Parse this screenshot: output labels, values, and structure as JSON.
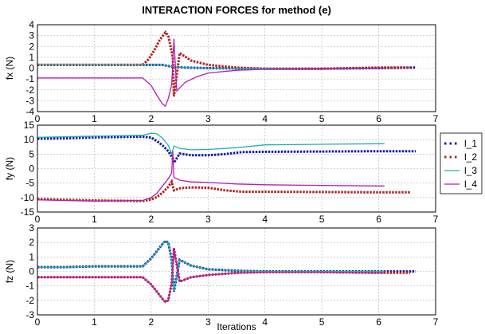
{
  "title": "INTERACTION FORCES for method (e)",
  "xlabel": "Iterations",
  "legend": {
    "placement": "right-of-middle-panel",
    "entries": [
      {
        "name": "l_1",
        "color": "#1a1aa6",
        "style": "dotted"
      },
      {
        "name": "l_2",
        "color": "#b22222",
        "style": "dotted"
      },
      {
        "name": "l_3",
        "color": "#20b2aa",
        "style": "solid"
      },
      {
        "name": "l_4",
        "color": "#b31fb3",
        "style": "solid"
      }
    ]
  },
  "chart_data": [
    {
      "type": "line",
      "ylabel": "fx (N)",
      "xlim": [
        0,
        7
      ],
      "ylim": [
        -4,
        4
      ],
      "xticks": [
        "0",
        "1",
        "2",
        "3",
        "4",
        "5",
        "6",
        "7"
      ],
      "yticks": [
        "4",
        "3",
        "2",
        "1",
        "0",
        "-1",
        "-2",
        "-3",
        "-4"
      ],
      "grid": true,
      "series": [
        {
          "name": "l_1",
          "color": "#1a1aa6",
          "style": "dotted",
          "x": [
            0,
            1.85,
            2.2,
            2.4,
            2.6,
            3.0,
            4.0,
            5.0,
            6.0,
            6.65
          ],
          "y": [
            0.3,
            0.3,
            0.3,
            0.1,
            0.05,
            0.0,
            -0.05,
            -0.05,
            0.0,
            0.05
          ]
        },
        {
          "name": "l_2",
          "color": "#b22222",
          "style": "dotted",
          "x": [
            0,
            1.85,
            1.95,
            2.05,
            2.15,
            2.25,
            2.3,
            2.38,
            2.4,
            2.5,
            2.7,
            3.0,
            3.5,
            4.0,
            5.0,
            6.0,
            6.55
          ],
          "y": [
            0.3,
            0.3,
            0.8,
            1.6,
            2.6,
            3.3,
            3.0,
            1.0,
            -2.6,
            1.4,
            0.7,
            0.3,
            0.05,
            -0.05,
            -0.05,
            0.05,
            0.05
          ]
        },
        {
          "name": "l_3",
          "color": "#20b2aa",
          "style": "solid",
          "x": [
            0,
            1.85,
            2.2,
            2.4,
            3.0,
            4.0,
            5.0,
            6.1
          ],
          "y": [
            0.3,
            0.3,
            0.3,
            0.1,
            0.0,
            -0.05,
            -0.05,
            0.0
          ]
        },
        {
          "name": "l_4",
          "color": "#b31fb3",
          "style": "solid",
          "x": [
            0,
            1.85,
            2.0,
            2.1,
            2.2,
            2.25,
            2.3,
            2.36,
            2.4,
            2.45,
            2.6,
            2.8,
            3.0,
            3.5,
            4.0,
            5.0,
            6.1
          ],
          "y": [
            -0.9,
            -0.9,
            -1.6,
            -2.5,
            -3.3,
            -3.5,
            -2.8,
            -1.5,
            2.7,
            -2.1,
            -1.3,
            -0.8,
            -0.45,
            -0.2,
            -0.1,
            -0.05,
            0.0
          ]
        }
      ]
    },
    {
      "type": "line",
      "ylabel": "fy (N)",
      "xlim": [
        0,
        7
      ],
      "ylim": [
        -15,
        15
      ],
      "xticks": [
        "0",
        "1",
        "2",
        "3",
        "4",
        "5",
        "6",
        "7"
      ],
      "yticks": [
        "15",
        "10",
        "5",
        "0",
        "-5",
        "-10",
        "-15"
      ],
      "grid": true,
      "series": [
        {
          "name": "l_1",
          "color": "#1a1aa6",
          "style": "dotted",
          "x": [
            0,
            0.5,
            1.0,
            1.85,
            2.0,
            2.1,
            2.2,
            2.3,
            2.38,
            2.4,
            2.5,
            2.7,
            3.0,
            3.3,
            3.6,
            4.0,
            5.0,
            6.0,
            6.65
          ],
          "y": [
            10.3,
            10.5,
            10.8,
            11.0,
            10.7,
            9.5,
            8.0,
            6.0,
            3.5,
            2.0,
            5.2,
            4.6,
            4.6,
            5.0,
            5.7,
            5.8,
            5.9,
            6.0,
            6.0
          ]
        },
        {
          "name": "l_2",
          "color": "#b22222",
          "style": "dotted",
          "x": [
            0,
            0.5,
            1.0,
            1.85,
            2.0,
            2.1,
            2.2,
            2.3,
            2.36,
            2.4,
            2.5,
            2.7,
            3.0,
            3.3,
            3.6,
            4.0,
            5.0,
            6.0,
            6.55
          ],
          "y": [
            -10.5,
            -10.8,
            -11.0,
            -11.2,
            -10.7,
            -9.8,
            -8.3,
            -6.3,
            -4.5,
            -7.5,
            -6.8,
            -6.5,
            -6.6,
            -7.5,
            -8.0,
            -8.0,
            -8.1,
            -8.2,
            -8.2
          ]
        },
        {
          "name": "l_3",
          "color": "#20b2aa",
          "style": "solid",
          "x": [
            0,
            0.5,
            1.0,
            1.85,
            2.0,
            2.1,
            2.2,
            2.3,
            2.36,
            2.4,
            2.5,
            2.7,
            3.0,
            3.5,
            4.0,
            5.0,
            6.0,
            6.1
          ],
          "y": [
            10.8,
            11.0,
            11.2,
            11.5,
            12.2,
            12.0,
            10.5,
            8.0,
            5.0,
            7.8,
            7.0,
            6.5,
            6.6,
            7.2,
            8.2,
            8.4,
            8.6,
            8.6
          ]
        },
        {
          "name": "l_4",
          "color": "#b31fb3",
          "style": "solid",
          "x": [
            0,
            0.5,
            1.0,
            1.85,
            2.0,
            2.1,
            2.2,
            2.3,
            2.36,
            2.38,
            2.4,
            2.5,
            2.7,
            3.0,
            3.5,
            4.0,
            5.0,
            6.0,
            6.1
          ],
          "y": [
            -10.8,
            -11.0,
            -11.2,
            -11.0,
            -10.0,
            -8.5,
            -6.0,
            -3.5,
            -1.5,
            6.0,
            -3.0,
            -4.0,
            -4.6,
            -4.8,
            -5.3,
            -5.6,
            -5.8,
            -6.0,
            -6.0
          ]
        }
      ]
    },
    {
      "type": "line",
      "ylabel": "fz (N)",
      "xlim": [
        0,
        7
      ],
      "ylim": [
        -3,
        3
      ],
      "xticks": [
        "0",
        "1",
        "2",
        "3",
        "4",
        "5",
        "6",
        "7"
      ],
      "yticks": [
        "3",
        "2",
        "1",
        "0",
        "-1",
        "-2",
        "-3"
      ],
      "grid": true,
      "series": [
        {
          "name": "l_1",
          "color": "#1a1aa6",
          "style": "dotted",
          "x": [
            0,
            0.5,
            1.0,
            1.85,
            2.0,
            2.1,
            2.2,
            2.25,
            2.3,
            2.36,
            2.4,
            2.5,
            2.7,
            3.0,
            3.5,
            4.0,
            5.0,
            6.0,
            6.65
          ],
          "y": [
            0.3,
            0.3,
            0.35,
            0.35,
            0.9,
            1.4,
            1.9,
            2.1,
            2.0,
            0.8,
            -1.4,
            0.8,
            0.4,
            0.15,
            0.05,
            0.0,
            0.0,
            0.0,
            0.0
          ]
        },
        {
          "name": "l_2",
          "color": "#b22222",
          "style": "dotted",
          "x": [
            0,
            0.5,
            1.0,
            1.85,
            2.0,
            2.1,
            2.2,
            2.25,
            2.3,
            2.36,
            2.4,
            2.5,
            2.7,
            3.0,
            3.5,
            4.0,
            5.0,
            6.0,
            6.55
          ],
          "y": [
            -0.4,
            -0.4,
            -0.4,
            -0.4,
            -0.9,
            -1.4,
            -1.9,
            -2.1,
            -2.0,
            -0.8,
            1.6,
            -0.7,
            -0.4,
            -0.25,
            -0.1,
            -0.05,
            -0.05,
            -0.1,
            -0.1
          ]
        },
        {
          "name": "l_3",
          "color": "#20b2aa",
          "style": "solid",
          "x": [
            0,
            0.5,
            1.0,
            1.85,
            2.0,
            2.1,
            2.2,
            2.25,
            2.3,
            2.36,
            2.4,
            2.5,
            2.7,
            3.0,
            3.5,
            4.0,
            5.0,
            6.0,
            6.1
          ],
          "y": [
            0.3,
            0.3,
            0.35,
            0.35,
            0.9,
            1.4,
            1.9,
            2.1,
            2.0,
            0.8,
            -1.4,
            0.8,
            0.4,
            0.15,
            0.05,
            0.0,
            0.0,
            0.0,
            0.0
          ]
        },
        {
          "name": "l_4",
          "color": "#b31fb3",
          "style": "solid",
          "x": [
            0,
            0.5,
            1.0,
            1.85,
            2.0,
            2.1,
            2.2,
            2.25,
            2.3,
            2.36,
            2.4,
            2.5,
            2.7,
            3.0,
            3.5,
            4.0,
            5.0,
            6.0,
            6.1
          ],
          "y": [
            -0.4,
            -0.4,
            -0.4,
            -0.4,
            -0.9,
            -1.4,
            -1.9,
            -2.1,
            -2.0,
            -0.8,
            1.6,
            -0.7,
            -0.4,
            -0.25,
            -0.1,
            -0.05,
            -0.05,
            -0.1,
            -0.1
          ]
        }
      ]
    }
  ]
}
